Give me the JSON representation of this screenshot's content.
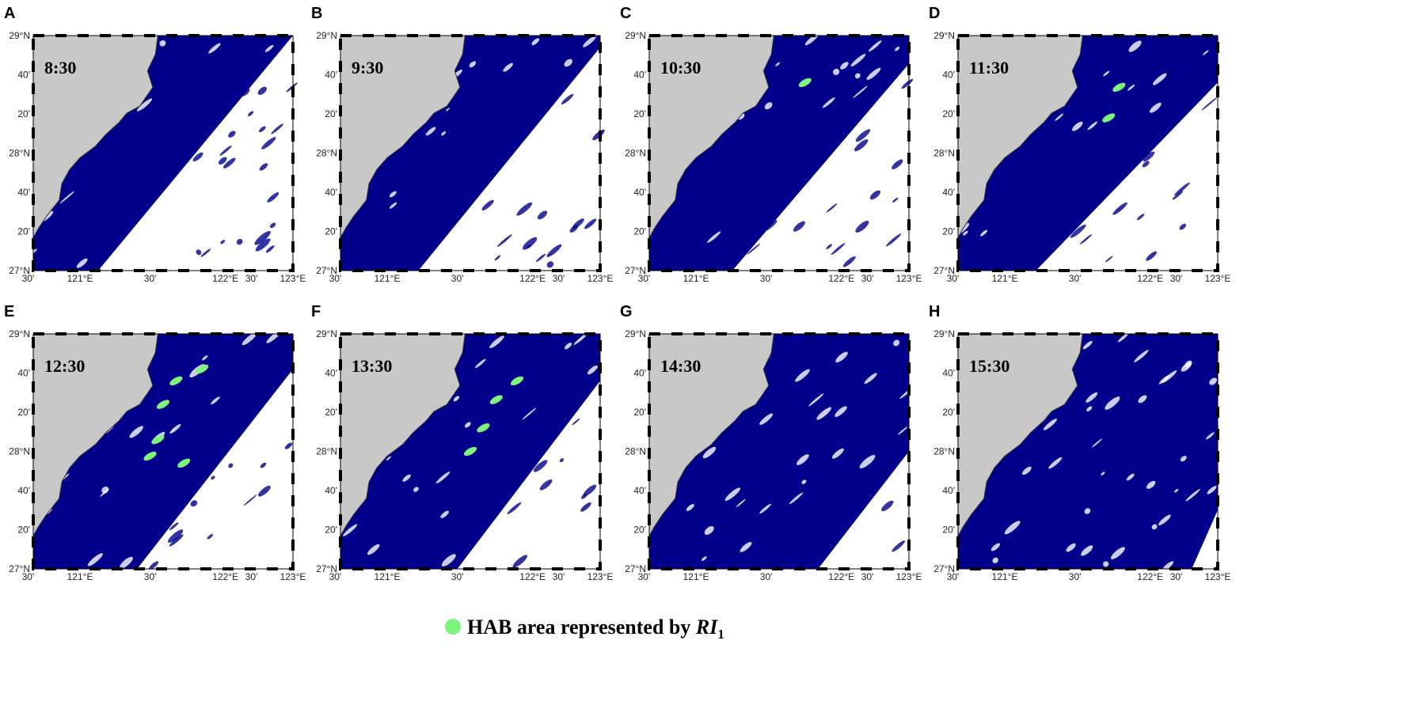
{
  "panels": [
    {
      "letter": "A",
      "time": "8:30"
    },
    {
      "letter": "B",
      "time": "9:30"
    },
    {
      "letter": "C",
      "time": "10:30"
    },
    {
      "letter": "D",
      "time": "11:30"
    },
    {
      "letter": "E",
      "time": "12:30"
    },
    {
      "letter": "F",
      "time": "13:30"
    },
    {
      "letter": "G",
      "time": "14:30"
    },
    {
      "letter": "H",
      "time": "15:30"
    }
  ],
  "axes": {
    "y_labels": [
      "29°N",
      "40'",
      "20'",
      "28°N",
      "40'",
      "20'",
      "27°N"
    ],
    "x_labels": [
      "30'",
      "121°E",
      "30'",
      "122°E",
      "30'",
      "123°E"
    ]
  },
  "legend": {
    "text": "HAB area represented  by ",
    "symbol": "RI",
    "subscript": "1"
  }
}
